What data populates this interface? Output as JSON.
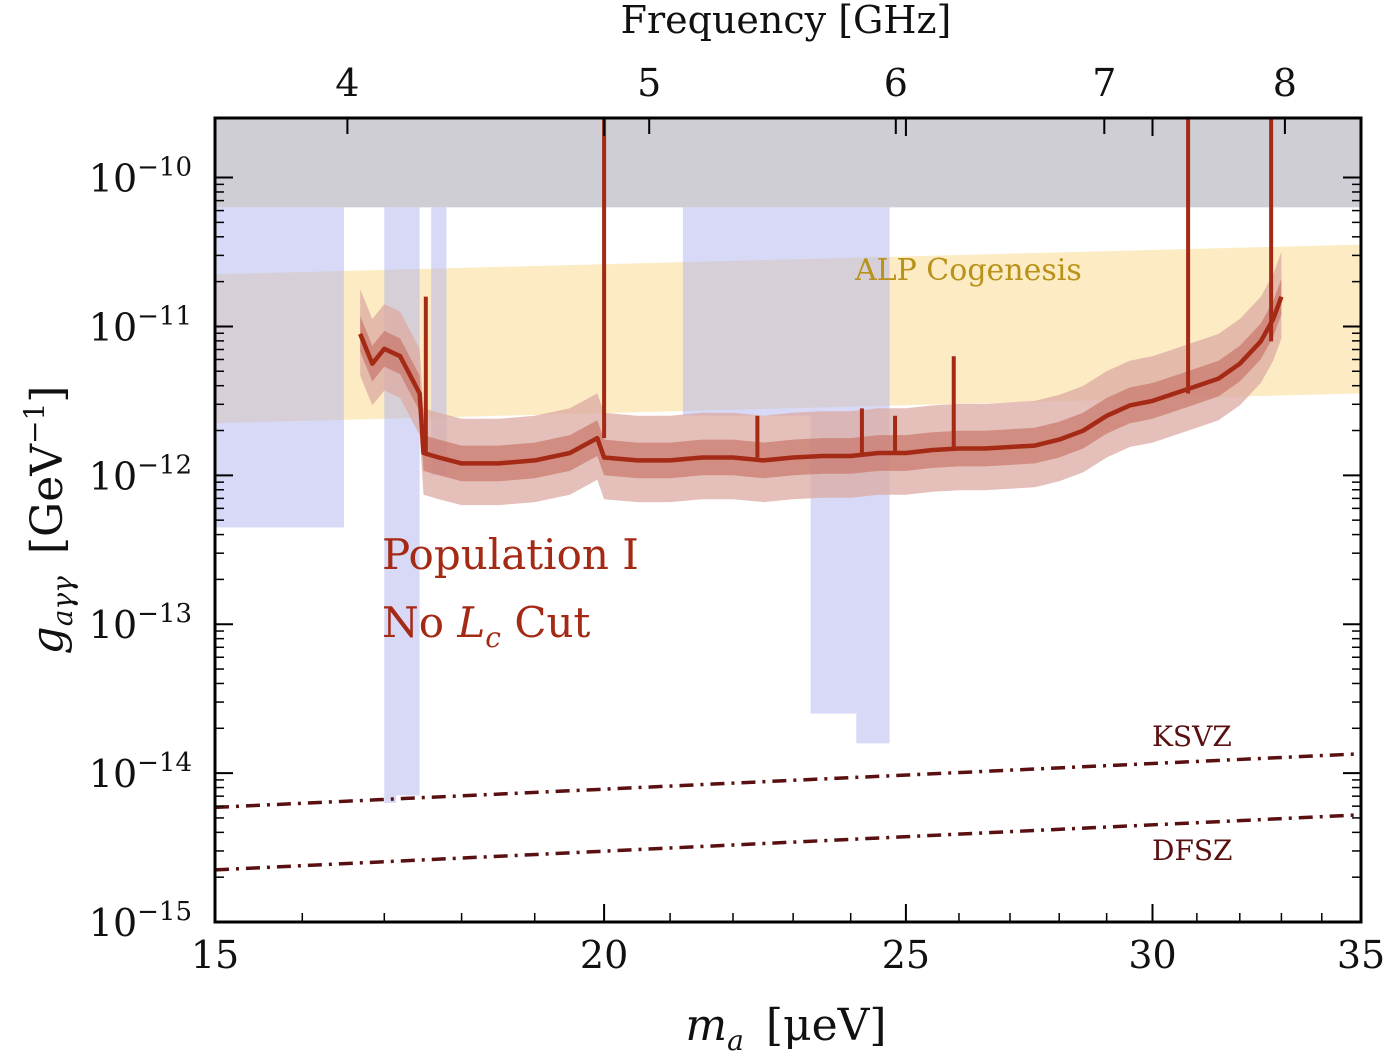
{
  "chart_data": {
    "type": "line",
    "title": "",
    "xlabel": {
      "symbol": "m",
      "sub": "a",
      "unit": "[μeV]"
    },
    "ylabel": {
      "symbol": "g",
      "sub": "aγγ",
      "unit": "[GeV",
      "unit_sup": "−1",
      "unit_end": "]"
    },
    "top_axis_label": "Frequency  [GHz]",
    "xlim": [
      15,
      35
    ],
    "ylim_log10": [
      -15,
      -9.6
    ],
    "x_scale": "log",
    "y_scale": "log",
    "x_ticks": [
      "15",
      "20",
      "25",
      "30",
      "35"
    ],
    "x_tick_values": [
      15,
      20,
      25,
      30,
      35
    ],
    "y_ticks": [
      {
        "base": "10",
        "exp": "−10",
        "value": -10
      },
      {
        "base": "10",
        "exp": "−11",
        "value": -11
      },
      {
        "base": "10",
        "exp": "−12",
        "value": -12
      },
      {
        "base": "10",
        "exp": "−13",
        "value": -13
      },
      {
        "base": "10",
        "exp": "−14",
        "value": -14
      },
      {
        "base": "10",
        "exp": "−15",
        "value": -15
      }
    ],
    "top_ticks": [
      "4",
      "5",
      "6",
      "7",
      "8"
    ],
    "top_tick_values": [
      4,
      5,
      6,
      7,
      8
    ],
    "ghz_per_uev": 0.2418,
    "colors": {
      "limit_line": "#a52a16",
      "band_inner": "#c9786b",
      "band_outer": "#dcaaa2",
      "cogenesis": "#fbe7b8",
      "cogenesis_text": "#b8921a",
      "existing_limits": "#b0b4ee",
      "excluded_top": "#c6c6cc",
      "qcd_line": "#5a1010",
      "annotation": "#a52a16"
    },
    "series": [
      {
        "name": "Population I limit",
        "x": [
          16.7,
          16.85,
          17.0,
          17.2,
          17.45,
          17.5,
          17.7,
          18.0,
          18.5,
          19.0,
          19.5,
          19.9,
          20.0,
          20.5,
          21.0,
          21.5,
          22.0,
          22.5,
          23.0,
          23.5,
          24.0,
          24.5,
          25.0,
          25.5,
          26.0,
          26.5,
          27.0,
          27.5,
          28.0,
          28.5,
          29.0,
          29.5,
          30.0,
          30.5,
          31.0,
          31.5,
          32.0,
          32.5,
          32.8,
          33.0
        ],
        "log10_y": [
          -11.05,
          -11.25,
          -11.15,
          -11.2,
          -11.45,
          -11.85,
          -11.88,
          -11.92,
          -11.92,
          -11.9,
          -11.85,
          -11.75,
          -11.88,
          -11.9,
          -11.9,
          -11.88,
          -11.88,
          -11.9,
          -11.88,
          -11.87,
          -11.87,
          -11.85,
          -11.85,
          -11.83,
          -11.82,
          -11.82,
          -11.81,
          -11.8,
          -11.76,
          -11.7,
          -11.6,
          -11.53,
          -11.5,
          -11.45,
          -11.4,
          -11.35,
          -11.25,
          -11.1,
          -10.95,
          -10.8
        ]
      }
    ],
    "limit_spikes": [
      {
        "x": 17.53,
        "log10_top": -10.8
      },
      {
        "x": 20.0,
        "log10_top": -9.6
      },
      {
        "x": 22.4,
        "log10_top": -11.6
      },
      {
        "x": 24.2,
        "log10_top": -11.55
      },
      {
        "x": 24.8,
        "log10_top": -11.6
      },
      {
        "x": 25.9,
        "log10_top": -11.2
      },
      {
        "x": 30.8,
        "log10_top": -9.6
      },
      {
        "x": 32.75,
        "log10_top": -9.6
      }
    ],
    "bands": [
      {
        "name": "1-sigma",
        "offset_lo": -0.12,
        "offset_hi": 0.12
      },
      {
        "name": "2-sigma",
        "offset_lo": -0.28,
        "offset_hi": 0.3
      }
    ],
    "cogenesis_band": {
      "x": [
        15,
        35
      ],
      "log10_lo": [
        -11.65,
        -11.45
      ],
      "log10_hi": [
        -10.65,
        -10.45
      ]
    },
    "excluded_top": {
      "log10_lo": -10.2,
      "log10_hi": -9.6
    },
    "existing_limits": [
      {
        "x0": 15.0,
        "x1": 16.5,
        "log10_lo": -12.35
      },
      {
        "x0": 17.0,
        "x1": 17.15,
        "log10_lo": -14.2
      },
      {
        "x0": 17.15,
        "x1": 17.45,
        "log10_lo": -14.15
      },
      {
        "x0": 17.6,
        "x1": 17.8,
        "log10_lo": -12.0
      },
      {
        "x0": 21.2,
        "x1": 23.3,
        "log10_lo": -11.6
      },
      {
        "x0": 23.3,
        "x1": 24.1,
        "log10_lo": -13.6
      },
      {
        "x0": 24.1,
        "x1": 24.7,
        "log10_lo": -13.8
      }
    ],
    "qcd_lines": [
      {
        "name": "KSVZ",
        "log10_at_15": -14.23,
        "log10_at_35": -13.87
      },
      {
        "name": "DFSZ",
        "log10_at_15": -14.65,
        "log10_at_35": -14.28
      }
    ],
    "annotations": {
      "cogenesis": "ALP Cogenesis",
      "population_line1": "Population I",
      "population_line2_pre": "No ",
      "population_line2_sym": "L",
      "population_line2_sub": "c",
      "population_line2_post": " Cut",
      "ksvz": "KSVZ",
      "dfsz": "DFSZ"
    }
  }
}
